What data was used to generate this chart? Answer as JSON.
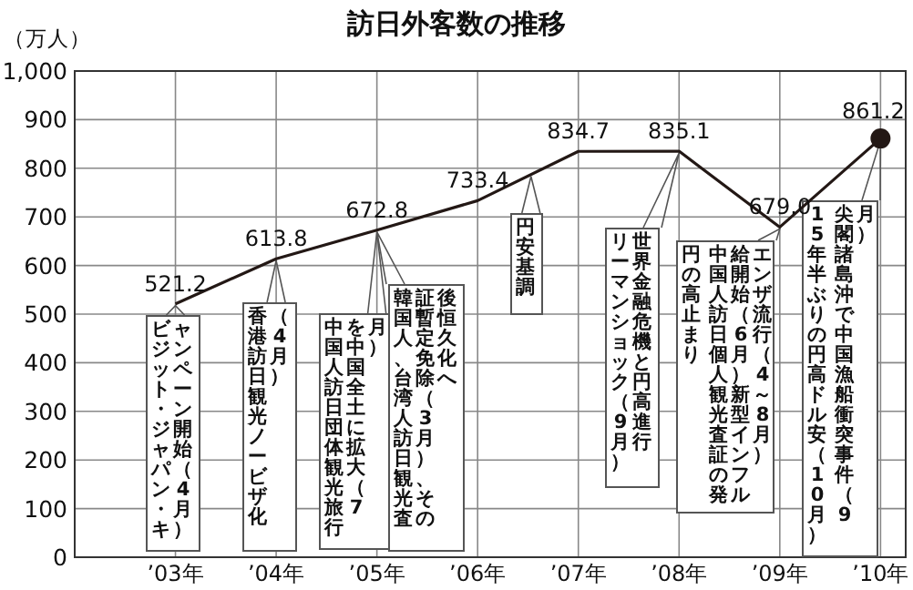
{
  "chart_data": {
    "type": "line",
    "title": "訪日外客数の推移",
    "ylabel": "（万人）",
    "categories": [
      "’03年",
      "’04年",
      "’05年",
      "’06年",
      "’07年",
      "’08年",
      "’09年",
      "’10年"
    ],
    "series": [
      {
        "values": [
          521.2,
          613.8,
          672.8,
          733.4,
          834.7,
          835.1,
          679.0,
          861.2
        ],
        "color": "#231815",
        "value_labels": [
          "521.2",
          "613.8",
          "672.8",
          "733.4",
          "834.7",
          "835.1",
          "679.0",
          "861.2"
        ]
      },
      {
        "type": "scatter",
        "x": [
          "’10年"
        ],
        "values": [
          861.2
        ],
        "color": "#231815",
        "marker": "circle"
      }
    ],
    "ylim": [
      0,
      1000
    ],
    "yticks": [
      0,
      100,
      200,
      300,
      400,
      500,
      600,
      700,
      800,
      900,
      {
        "value": 1000,
        "label": "1,000"
      }
    ],
    "grid": true,
    "marker": "none",
    "annotations": [
      "ビジット・ジャパン・キャンペーン開始（4月）",
      "香港訪日観光ノービザ化（4月）",
      "中国人訪日団体観光旅行を中国全土に拡大（7月）",
      "韓国人、台湾人訪日観光査証暫定免除（3月）、その後恒久化へ",
      "円安基調",
      "リーマンショック（9月）世界金融危機と円高進行",
      "円の高止まり",
      "中国人訪日個人観光査証の発給開始（6月）新型インフルエンザ流行（4～8月）",
      "15年半ぶりの円高ドル安（10月）",
      "尖閣諸島沖で中国漁船衝突事件（9月）"
    ]
  }
}
